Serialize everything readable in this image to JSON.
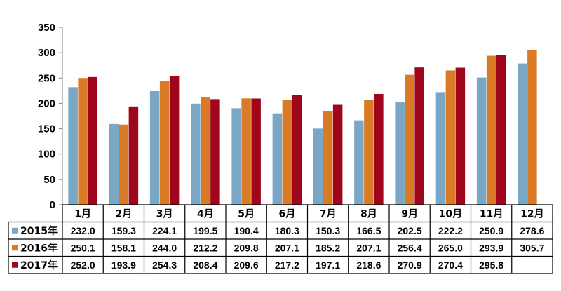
{
  "chart_data": {
    "type": "bar",
    "title": "",
    "xlabel": "",
    "ylabel": "",
    "ylim": [
      0,
      350
    ],
    "yticks": [
      "0",
      "50",
      "100",
      "150",
      "200",
      "250",
      "300",
      "350"
    ],
    "categories": [
      "1月",
      "2月",
      "3月",
      "4月",
      "5月",
      "6月",
      "7月",
      "8月",
      "9月",
      "10月",
      "11月",
      "12月"
    ],
    "legend_placement": "data-table-rows",
    "grid": false,
    "series": [
      {
        "name": "2015年",
        "color": "#7BA7C6",
        "values": [
          232.0,
          159.3,
          224.1,
          199.5,
          190.4,
          180.3,
          150.3,
          166.5,
          202.5,
          222.2,
          250.9,
          278.6
        ],
        "labels": [
          "232.0",
          "159.3",
          "224.1",
          "199.5",
          "190.4",
          "180.3",
          "150.3",
          "166.5",
          "202.5",
          "222.2",
          "250.9",
          "278.6"
        ]
      },
      {
        "name": "2016年",
        "color": "#D97A27",
        "values": [
          250.1,
          158.1,
          244.0,
          212.2,
          209.8,
          207.1,
          185.2,
          207.1,
          256.4,
          265.0,
          293.9,
          305.7
        ],
        "labels": [
          "250.1",
          "158.1",
          "244.0",
          "212.2",
          "209.8",
          "207.1",
          "185.2",
          "207.1",
          "256.4",
          "265.0",
          "293.9",
          "305.7"
        ]
      },
      {
        "name": "2017年",
        "color": "#A0061B",
        "values": [
          252.0,
          193.9,
          254.3,
          208.4,
          209.6,
          217.2,
          197.1,
          218.6,
          270.9,
          270.4,
          295.8,
          null
        ],
        "labels": [
          "252.0",
          "193.9",
          "254.3",
          "208.4",
          "209.6",
          "217.2",
          "197.1",
          "218.6",
          "270.9",
          "270.4",
          "295.8",
          ""
        ]
      }
    ]
  }
}
